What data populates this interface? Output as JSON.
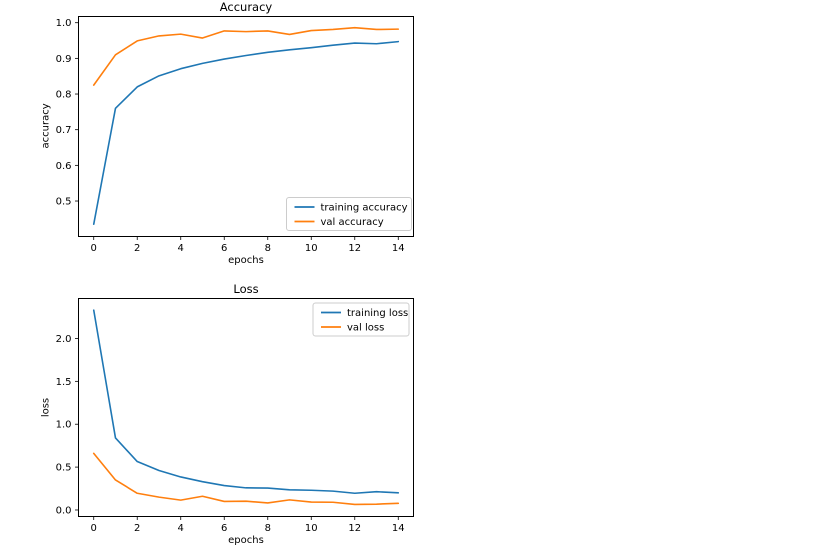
{
  "figure": {
    "background": "#ffffff"
  },
  "chart_data": [
    {
      "type": "line",
      "title": "Accuracy",
      "xlabel": "epochs",
      "ylabel": "accuracy",
      "x": [
        0,
        1,
        2,
        3,
        4,
        5,
        6,
        7,
        8,
        9,
        10,
        11,
        12,
        13,
        14
      ],
      "xlim": [
        -0.7,
        14.7
      ],
      "ylim": [
        0.4005,
        1.0174
      ],
      "xticks": [
        0,
        2,
        4,
        6,
        8,
        10,
        12,
        14
      ],
      "xtick_labels": [
        "0",
        "2",
        "4",
        "6",
        "8",
        "10",
        "12",
        "14"
      ],
      "yticks": [
        0.5,
        0.6,
        0.7,
        0.8,
        0.9,
        1.0
      ],
      "ytick_labels": [
        "0.5",
        "0.6",
        "0.7",
        "0.8",
        "0.9",
        "1.0"
      ],
      "grid": false,
      "legend_position": "lower right",
      "series": [
        {
          "name": "training accuracy",
          "color": "#1f77b4",
          "values": [
            0.435,
            0.76,
            0.82,
            0.851,
            0.871,
            0.886,
            0.898,
            0.908,
            0.917,
            0.924,
            0.93,
            0.937,
            0.943,
            0.941,
            0.947
          ]
        },
        {
          "name": "val accuracy",
          "color": "#ff7f0e",
          "values": [
            0.825,
            0.91,
            0.949,
            0.963,
            0.968,
            0.957,
            0.977,
            0.975,
            0.977,
            0.967,
            0.978,
            0.981,
            0.986,
            0.981,
            0.982
          ]
        }
      ]
    },
    {
      "type": "line",
      "title": "Loss",
      "xlabel": "epochs",
      "ylabel": "loss",
      "x": [
        0,
        1,
        2,
        3,
        4,
        5,
        6,
        7,
        8,
        9,
        10,
        11,
        12,
        13,
        14
      ],
      "xlim": [
        -0.7,
        14.7
      ],
      "ylim": [
        -0.076,
        2.466
      ],
      "xticks": [
        0,
        2,
        4,
        6,
        8,
        10,
        12,
        14
      ],
      "xtick_labels": [
        "0",
        "2",
        "4",
        "6",
        "8",
        "10",
        "12",
        "14"
      ],
      "yticks": [
        0.0,
        0.5,
        1.0,
        1.5,
        2.0
      ],
      "ytick_labels": [
        "0.0",
        "0.5",
        "1.0",
        "1.5",
        "2.0"
      ],
      "grid": false,
      "legend_position": "upper right",
      "series": [
        {
          "name": "training loss",
          "color": "#1f77b4",
          "values": [
            2.33,
            0.84,
            0.565,
            0.46,
            0.385,
            0.33,
            0.285,
            0.258,
            0.255,
            0.235,
            0.23,
            0.22,
            0.195,
            0.213,
            0.2
          ]
        },
        {
          "name": "val loss",
          "color": "#ff7f0e",
          "values": [
            0.66,
            0.35,
            0.195,
            0.15,
            0.115,
            0.16,
            0.1,
            0.103,
            0.082,
            0.118,
            0.092,
            0.09,
            0.065,
            0.068,
            0.078
          ]
        }
      ]
    }
  ],
  "style": {
    "line_blue": "#1f77b4",
    "line_orange": "#ff7f0e",
    "spine_color": "#000000",
    "legend_border": "#cccccc",
    "background": "#ffffff"
  }
}
